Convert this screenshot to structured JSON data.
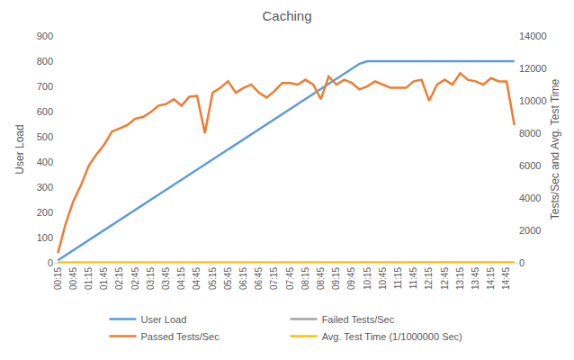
{
  "chart_data": {
    "type": "line",
    "title": "Caching",
    "y_label": "User Load",
    "y2_label": "Tests/Sec and Avg. Test Time",
    "categories": [
      "00:15",
      null,
      "00:45",
      null,
      "01:15",
      null,
      "01:45",
      null,
      "02:15",
      null,
      "02:45",
      null,
      "03:15",
      null,
      "03:45",
      null,
      "04:15",
      null,
      "04:45",
      null,
      "05:15",
      null,
      "05:45",
      null,
      "06:15",
      null,
      "06:45",
      null,
      "07:15",
      null,
      "07:45",
      null,
      "08:15",
      null,
      "08:45",
      null,
      "09:15",
      null,
      "09:45",
      null,
      "10:15",
      null,
      "10:45",
      null,
      "11:15",
      null,
      "11:45",
      null,
      "12:15",
      null,
      "12:45",
      null,
      "13:15",
      null,
      "13:45",
      null,
      "14:15",
      null,
      "14:45",
      null
    ],
    "series": [
      {
        "name": "User Load",
        "color": "#5b9bd5",
        "axis": "y",
        "values": [
          10,
          30,
          50,
          70,
          90,
          110,
          130,
          150,
          170,
          190,
          210,
          230,
          250,
          270,
          290,
          310,
          330,
          350,
          370,
          390,
          410,
          430,
          450,
          470,
          490,
          510,
          530,
          550,
          570,
          590,
          610,
          630,
          650,
          670,
          690,
          710,
          730,
          750,
          770,
          790,
          800,
          800,
          800,
          800,
          800,
          800,
          800,
          800,
          800,
          800,
          800,
          800,
          800,
          800,
          800,
          800,
          800,
          800,
          800,
          800
        ]
      },
      {
        "name": "Failed Tests/Sec",
        "color": "#a5a5a5",
        "axis": "y2",
        "values": [
          0,
          0,
          0,
          0,
          0,
          0,
          0,
          0,
          0,
          0,
          0,
          0,
          0,
          0,
          0,
          0,
          0,
          0,
          0,
          0,
          0,
          0,
          0,
          0,
          0,
          0,
          0,
          0,
          0,
          0,
          0,
          0,
          0,
          0,
          0,
          0,
          0,
          0,
          0,
          0,
          0,
          0,
          0,
          0,
          0,
          0,
          0,
          0,
          0,
          0,
          0,
          0,
          0,
          0,
          0,
          0,
          0,
          0,
          0,
          0
        ]
      },
      {
        "name": "Passed Tests/Sec",
        "color": "#ed7d31",
        "axis": "y2",
        "values": [
          600,
          2400,
          3800,
          4800,
          6000,
          6700,
          7300,
          8100,
          8300,
          8500,
          8900,
          9000,
          9300,
          9700,
          9800,
          10100,
          9700,
          10250,
          10300,
          8000,
          10500,
          10800,
          11200,
          10500,
          10800,
          11000,
          10500,
          10200,
          10600,
          11100,
          11100,
          11000,
          11300,
          11000,
          10100,
          11500,
          11000,
          11300,
          11100,
          10700,
          10900,
          11200,
          11000,
          10800,
          10800,
          10800,
          11200,
          11300,
          10000,
          11000,
          11300,
          11000,
          11700,
          11300,
          11200,
          11000,
          11400,
          11200,
          11200,
          8500
        ]
      },
      {
        "name": "Avg. Test Time (1/1000000 Sec)",
        "color": "#ffc000",
        "axis": "y2",
        "values": [
          10,
          10,
          10,
          10,
          10,
          10,
          10,
          10,
          10,
          10,
          10,
          10,
          10,
          10,
          10,
          10,
          10,
          10,
          10,
          10,
          20,
          20,
          20,
          20,
          20,
          20,
          20,
          20,
          30,
          30,
          30,
          30,
          30,
          30,
          30,
          30,
          30,
          30,
          30,
          30,
          30,
          30,
          30,
          30,
          30,
          30,
          30,
          30,
          30,
          30,
          30,
          30,
          30,
          30,
          30,
          30,
          30,
          30,
          30,
          30
        ]
      }
    ],
    "ylim": [
      0,
      900
    ],
    "yticks": [
      0,
      100,
      200,
      300,
      400,
      500,
      600,
      700,
      800,
      900
    ],
    "y2lim": [
      0,
      14000
    ],
    "y2ticks": [
      0,
      2000,
      4000,
      6000,
      8000,
      10000,
      12000,
      14000
    ],
    "grid": false,
    "legend": "bottom"
  }
}
